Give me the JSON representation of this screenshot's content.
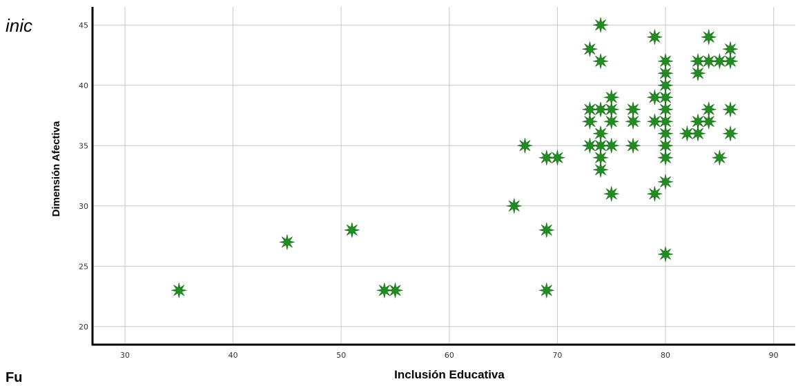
{
  "fragments": {
    "top_text": "inic",
    "bottom_text": "Fu"
  },
  "chart_data": {
    "type": "scatter",
    "title": "",
    "xlabel": "Inclusión Educativa",
    "ylabel": "Dimensión Afectiva",
    "xlim": [
      27,
      92
    ],
    "ylim": [
      18.5,
      46.5
    ],
    "xticks": [
      30,
      40,
      50,
      60,
      70,
      80,
      90
    ],
    "yticks": [
      20,
      25,
      30,
      35,
      40,
      45
    ],
    "grid": true,
    "marker": "star",
    "marker_color": "#228B22",
    "points": [
      {
        "x": 35,
        "y": 23
      },
      {
        "x": 45,
        "y": 27
      },
      {
        "x": 51,
        "y": 28
      },
      {
        "x": 54,
        "y": 23
      },
      {
        "x": 55,
        "y": 23
      },
      {
        "x": 66,
        "y": 30
      },
      {
        "x": 67,
        "y": 35
      },
      {
        "x": 69,
        "y": 34
      },
      {
        "x": 69,
        "y": 28
      },
      {
        "x": 69,
        "y": 23
      },
      {
        "x": 70,
        "y": 34
      },
      {
        "x": 73,
        "y": 43
      },
      {
        "x": 73,
        "y": 38
      },
      {
        "x": 73,
        "y": 37
      },
      {
        "x": 73,
        "y": 35
      },
      {
        "x": 74,
        "y": 45
      },
      {
        "x": 74,
        "y": 42
      },
      {
        "x": 74,
        "y": 38
      },
      {
        "x": 74,
        "y": 36
      },
      {
        "x": 74,
        "y": 35
      },
      {
        "x": 74,
        "y": 34
      },
      {
        "x": 74,
        "y": 33
      },
      {
        "x": 75,
        "y": 39
      },
      {
        "x": 75,
        "y": 38
      },
      {
        "x": 75,
        "y": 37
      },
      {
        "x": 75,
        "y": 35
      },
      {
        "x": 75,
        "y": 31
      },
      {
        "x": 77,
        "y": 38
      },
      {
        "x": 77,
        "y": 37
      },
      {
        "x": 77,
        "y": 35
      },
      {
        "x": 79,
        "y": 44
      },
      {
        "x": 79,
        "y": 39
      },
      {
        "x": 79,
        "y": 37
      },
      {
        "x": 79,
        "y": 31
      },
      {
        "x": 80,
        "y": 42
      },
      {
        "x": 80,
        "y": 41
      },
      {
        "x": 80,
        "y": 40
      },
      {
        "x": 80,
        "y": 39
      },
      {
        "x": 80,
        "y": 38
      },
      {
        "x": 80,
        "y": 37
      },
      {
        "x": 80,
        "y": 36
      },
      {
        "x": 80,
        "y": 35
      },
      {
        "x": 80,
        "y": 34
      },
      {
        "x": 80,
        "y": 32
      },
      {
        "x": 80,
        "y": 26
      },
      {
        "x": 82,
        "y": 36
      },
      {
        "x": 83,
        "y": 42
      },
      {
        "x": 83,
        "y": 41
      },
      {
        "x": 83,
        "y": 37
      },
      {
        "x": 83,
        "y": 36
      },
      {
        "x": 84,
        "y": 44
      },
      {
        "x": 84,
        "y": 42
      },
      {
        "x": 84,
        "y": 38
      },
      {
        "x": 84,
        "y": 37
      },
      {
        "x": 85,
        "y": 42
      },
      {
        "x": 85,
        "y": 34
      },
      {
        "x": 86,
        "y": 43
      },
      {
        "x": 86,
        "y": 42
      },
      {
        "x": 86,
        "y": 38
      },
      {
        "x": 86,
        "y": 36
      }
    ]
  }
}
